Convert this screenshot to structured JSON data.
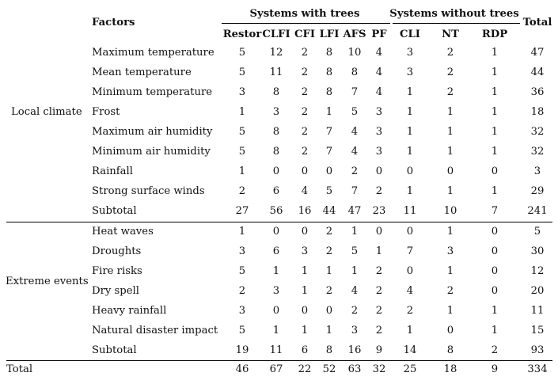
{
  "headers": {
    "factors": "Factors",
    "group_with": "Systems with trees",
    "group_without": "Systems without trees",
    "total": "Total",
    "columns": [
      "Restor",
      "CLFI",
      "CFI",
      "LFI",
      "AFS",
      "PF",
      "CLI",
      "NT",
      "RDP"
    ]
  },
  "sections": [
    {
      "label": "Local climate",
      "rows": [
        {
          "factor": "Maximum temperature",
          "values": [
            "5",
            "12",
            "2",
            "8",
            "10",
            "4",
            "3",
            "2",
            "1"
          ],
          "total": "47"
        },
        {
          "factor": "Mean temperature",
          "values": [
            "5",
            "11",
            "2",
            "8",
            "8",
            "4",
            "3",
            "2",
            "1"
          ],
          "total": "44"
        },
        {
          "factor": "Minimum temperature",
          "values": [
            "3",
            "8",
            "2",
            "8",
            "7",
            "4",
            "1",
            "2",
            "1"
          ],
          "total": "36"
        },
        {
          "factor": "Frost",
          "values": [
            "1",
            "3",
            "2",
            "1",
            "5",
            "3",
            "1",
            "1",
            "1"
          ],
          "total": "18"
        },
        {
          "factor": "Maximum air humidity",
          "values": [
            "5",
            "8",
            "2",
            "7",
            "4",
            "3",
            "1",
            "1",
            "1"
          ],
          "total": "32"
        },
        {
          "factor": "Minimum air humidity",
          "values": [
            "5",
            "8",
            "2",
            "7",
            "4",
            "3",
            "1",
            "1",
            "1"
          ],
          "total": "32"
        },
        {
          "factor": "Rainfall",
          "values": [
            "1",
            "0",
            "0",
            "0",
            "2",
            "0",
            "0",
            "0",
            "0"
          ],
          "total": "3"
        },
        {
          "factor": "Strong surface winds",
          "values": [
            "2",
            "6",
            "4",
            "5",
            "7",
            "2",
            "1",
            "1",
            "1"
          ],
          "total": "29"
        },
        {
          "factor": "Subtotal",
          "values": [
            "27",
            "56",
            "16",
            "44",
            "47",
            "23",
            "11",
            "10",
            "7"
          ],
          "total": "241"
        }
      ]
    },
    {
      "label": "Extreme events",
      "rows": [
        {
          "factor": "Heat waves",
          "values": [
            "1",
            "0",
            "0",
            "2",
            "1",
            "0",
            "0",
            "1",
            "0"
          ],
          "total": "5"
        },
        {
          "factor": "Droughts",
          "values": [
            "3",
            "6",
            "3",
            "2",
            "5",
            "1",
            "7",
            "3",
            "0"
          ],
          "total": "30"
        },
        {
          "factor": "Fire risks",
          "values": [
            "5",
            "1",
            "1",
            "1",
            "1",
            "2",
            "0",
            "1",
            "0"
          ],
          "total": "12"
        },
        {
          "factor": "Dry spell",
          "values": [
            "2",
            "3",
            "1",
            "2",
            "4",
            "2",
            "4",
            "2",
            "0"
          ],
          "total": "20"
        },
        {
          "factor": "Heavy rainfall",
          "values": [
            "3",
            "0",
            "0",
            "0",
            "2",
            "2",
            "2",
            "1",
            "1"
          ],
          "total": "11"
        },
        {
          "factor": "Natural disaster impact",
          "values": [
            "5",
            "1",
            "1",
            "1",
            "3",
            "2",
            "1",
            "0",
            "1"
          ],
          "total": "15"
        },
        {
          "factor": "Subtotal",
          "values": [
            "19",
            "11",
            "6",
            "8",
            "16",
            "9",
            "14",
            "8",
            "2"
          ],
          "total": "93"
        }
      ]
    }
  ],
  "grand_total": {
    "label": "Total",
    "values": [
      "46",
      "67",
      "22",
      "52",
      "63",
      "32",
      "25",
      "18",
      "9"
    ],
    "total": "334"
  }
}
